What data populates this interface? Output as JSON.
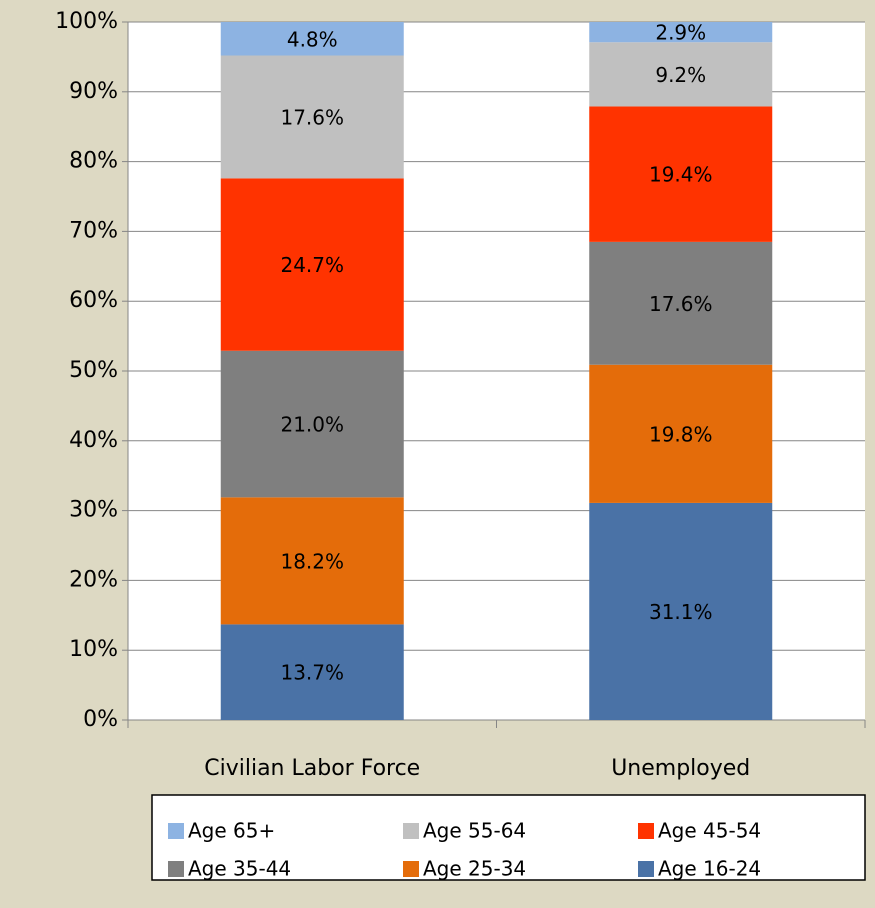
{
  "chart_data": {
    "type": "stacked-bar",
    "categories": [
      "Civilian Labor Force",
      "Unemployed"
    ],
    "series": [
      {
        "name": "Age 16-24",
        "color": "#4a72a6",
        "values": [
          13.7,
          31.1
        ],
        "value_labels": [
          "13.7%",
          "31.1%"
        ]
      },
      {
        "name": "Age 25-34",
        "color": "#e46c0a",
        "values": [
          18.2,
          19.8
        ],
        "value_labels": [
          "18.2%",
          "19.8%"
        ]
      },
      {
        "name": "Age 35-44",
        "color": "#7f7f7f",
        "values": [
          21.0,
          17.6
        ],
        "value_labels": [
          "21.0%",
          "17.6%"
        ]
      },
      {
        "name": "Age 45-54",
        "color": "#ff3300",
        "values": [
          24.7,
          19.4
        ],
        "value_labels": [
          "24.7%",
          "19.4%"
        ]
      },
      {
        "name": "Age 55-64",
        "color": "#c0c0c0",
        "values": [
          17.6,
          9.2
        ],
        "value_labels": [
          "17.6%",
          "9.2%"
        ]
      },
      {
        "name": "Age 65+",
        "color": "#8db3e2",
        "values": [
          4.8,
          2.9
        ],
        "value_labels": [
          "4.8%",
          "2.9%"
        ]
      }
    ],
    "ylim": [
      0,
      100
    ],
    "yticks": [
      {
        "value": 0,
        "label": "0%"
      },
      {
        "value": 10,
        "label": "10%"
      },
      {
        "value": 20,
        "label": "20%"
      },
      {
        "value": 30,
        "label": "30%"
      },
      {
        "value": 40,
        "label": "40%"
      },
      {
        "value": 50,
        "label": "50%"
      },
      {
        "value": 60,
        "label": "60%"
      },
      {
        "value": 70,
        "label": "70%"
      },
      {
        "value": 80,
        "label": "80%"
      },
      {
        "value": 90,
        "label": "90%"
      },
      {
        "value": 100,
        "label": "100%"
      }
    ],
    "grid": true
  }
}
